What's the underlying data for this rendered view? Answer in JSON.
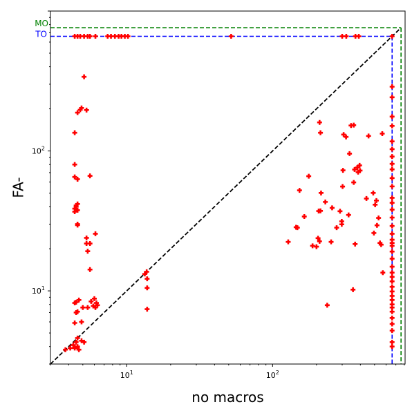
{
  "chart_data": {
    "type": "scatter",
    "title": "",
    "xlabel": "no macros",
    "ylabel": "FA-",
    "x_scale": "log",
    "y_scale": "log",
    "xlim": [
      3.0,
      810
    ],
    "ylim": [
      3.0,
      1000
    ],
    "x_ticks": [
      10,
      100
    ],
    "x_tick_labels": [
      "10^1",
      "10^2"
    ],
    "y_ticks": [
      10,
      100
    ],
    "y_tick_labels": [
      "10^1",
      "10^2"
    ],
    "grid": false,
    "legend": "none",
    "reference_lines": {
      "diagonal": {
        "style": "dashed",
        "color": "#000000",
        "from": [
          3.0,
          3.0
        ],
        "to": [
          760,
          760
        ]
      },
      "timeout": {
        "label": "TO",
        "value": 660,
        "color": "#0000ff",
        "style": "dashed"
      },
      "memout": {
        "label": "MO",
        "value": 760,
        "color": "#008000",
        "style": "dashed"
      }
    },
    "marker": {
      "shape": "plus",
      "color": "#ff0000"
    },
    "series": [
      {
        "points": [
          [
            4.3,
            4.1
          ],
          [
            4.4,
            3.9
          ],
          [
            4.6,
            4.0
          ],
          [
            4.5,
            4.3
          ],
          [
            4.7,
            3.8
          ],
          [
            4.9,
            4.4
          ],
          [
            5.1,
            4.3
          ],
          [
            4.1,
            3.9
          ],
          [
            3.8,
            3.8
          ],
          [
            4.6,
            4.6
          ],
          [
            4.4,
            5.9
          ],
          [
            4.9,
            6.0
          ],
          [
            4.6,
            7.1
          ],
          [
            4.5,
            7.0
          ],
          [
            5.0,
            7.6
          ],
          [
            5.4,
            7.6
          ],
          [
            5.7,
            8.4
          ],
          [
            5.9,
            7.8
          ],
          [
            6.1,
            7.6
          ],
          [
            6.2,
            8.2
          ],
          [
            6.0,
            8.8
          ],
          [
            6.3,
            7.9
          ],
          [
            4.4,
            8.2
          ],
          [
            4.5,
            8.3
          ],
          [
            4.7,
            8.6
          ],
          [
            5.6,
            14.2
          ],
          [
            5.4,
            19.2
          ],
          [
            5.6,
            21.8
          ],
          [
            5.3,
            21.8
          ],
          [
            5.3,
            23.9
          ],
          [
            6.1,
            25.6
          ],
          [
            4.6,
            29.5
          ],
          [
            4.6,
            30.0
          ],
          [
            4.4,
            36.8
          ],
          [
            4.6,
            37.7
          ],
          [
            4.4,
            38.7
          ],
          [
            4.5,
            39.9
          ],
          [
            4.6,
            41.8
          ],
          [
            4.5,
            40.8
          ],
          [
            4.4,
            65.2
          ],
          [
            4.6,
            62.8
          ],
          [
            5.6,
            66.4
          ],
          [
            4.4,
            80.0
          ],
          [
            4.4,
            135.0
          ],
          [
            4.6,
            188.0
          ],
          [
            4.8,
            197.0
          ],
          [
            5.3,
            196.0
          ],
          [
            4.9,
            203.0
          ],
          [
            5.1,
            339.0
          ],
          [
            13.3,
            13.2
          ],
          [
            13.7,
            13.7
          ],
          [
            13.8,
            12.2
          ],
          [
            13.8,
            10.5
          ],
          [
            13.8,
            7.4
          ],
          [
            4.4,
            660
          ],
          [
            4.6,
            660
          ],
          [
            4.8,
            660
          ],
          [
            5.1,
            660
          ],
          [
            5.4,
            660
          ],
          [
            5.6,
            660
          ],
          [
            6.1,
            660
          ],
          [
            7.4,
            660
          ],
          [
            7.8,
            660
          ],
          [
            8.3,
            660
          ],
          [
            8.8,
            660
          ],
          [
            9.2,
            660
          ],
          [
            9.7,
            660
          ],
          [
            10.2,
            660
          ],
          [
            52.0,
            660
          ],
          [
            300,
            660
          ],
          [
            320,
            660
          ],
          [
            370,
            660
          ],
          [
            390,
            660
          ],
          [
            128,
            22.4
          ],
          [
            145,
            28.5
          ],
          [
            148,
            28.3
          ],
          [
            153,
            52.3
          ],
          [
            165,
            34.0
          ],
          [
            177,
            66.0
          ],
          [
            188,
            21.0
          ],
          [
            200,
            20.7
          ],
          [
            205,
            23.8
          ],
          [
            210,
            22.6
          ],
          [
            207,
            37.2
          ],
          [
            213,
            37.3
          ],
          [
            215,
            50.1
          ],
          [
            230,
            43.2
          ],
          [
            237,
            7.9
          ],
          [
            252,
            22.4
          ],
          [
            256,
            39.2
          ],
          [
            275,
            28.3
          ],
          [
            290,
            37.1
          ],
          [
            298,
            31.4
          ],
          [
            298,
            29.9
          ],
          [
            302,
            55.7
          ],
          [
            304,
            72.7
          ],
          [
            307,
            131.0
          ],
          [
            319,
            126.0
          ],
          [
            332,
            34.9
          ],
          [
            337,
            95.7
          ],
          [
            345,
            152.0
          ],
          [
            356,
            10.2
          ],
          [
            360,
            153.0
          ],
          [
            360,
            59.6
          ],
          [
            365,
            73.7
          ],
          [
            368,
            21.6
          ],
          [
            381,
            76.2
          ],
          [
            398,
            72.4
          ],
          [
            395,
            78.9
          ],
          [
            386,
            70.5
          ],
          [
            440,
            45.7
          ],
          [
            455,
            128.0
          ],
          [
            490,
            50.1
          ],
          [
            505,
            41.3
          ],
          [
            515,
            44.2
          ],
          [
            520,
            29.4
          ],
          [
            533,
            33.2
          ],
          [
            545,
            22.0
          ],
          [
            555,
            21.4
          ],
          [
            565,
            133.0
          ],
          [
            570,
            13.5
          ],
          [
            210,
            160.0
          ],
          [
            213,
            135.0
          ],
          [
            495,
            25.9
          ],
          [
            660,
            4.0
          ],
          [
            660,
            4.3
          ],
          [
            660,
            5.2
          ],
          [
            660,
            5.8
          ],
          [
            660,
            6.4
          ],
          [
            660,
            7.1
          ],
          [
            660,
            7.6
          ],
          [
            660,
            8.0
          ],
          [
            660,
            8.6
          ],
          [
            660,
            9.2
          ],
          [
            660,
            9.9
          ],
          [
            660,
            10.7
          ],
          [
            660,
            11.7
          ],
          [
            660,
            12.6
          ],
          [
            660,
            13.5
          ],
          [
            660,
            14.9
          ],
          [
            660,
            17.0
          ],
          [
            660,
            19.1
          ],
          [
            660,
            21.0
          ],
          [
            660,
            22.0
          ],
          [
            660,
            23.2
          ],
          [
            660,
            25.6
          ],
          [
            660,
            29.1
          ],
          [
            660,
            33.4
          ],
          [
            660,
            38.1
          ],
          [
            660,
            42.6
          ],
          [
            660,
            46.2
          ],
          [
            660,
            55.8
          ],
          [
            660,
            64.0
          ],
          [
            660,
            73.9
          ],
          [
            660,
            80.9
          ],
          [
            660,
            91.2
          ],
          [
            660,
            103.0
          ],
          [
            660,
            117.0
          ],
          [
            660,
            151.0
          ],
          [
            660,
            176.0
          ],
          [
            660,
            242.0
          ],
          [
            660,
            288.0
          ],
          [
            660,
            660
          ]
        ]
      }
    ]
  }
}
